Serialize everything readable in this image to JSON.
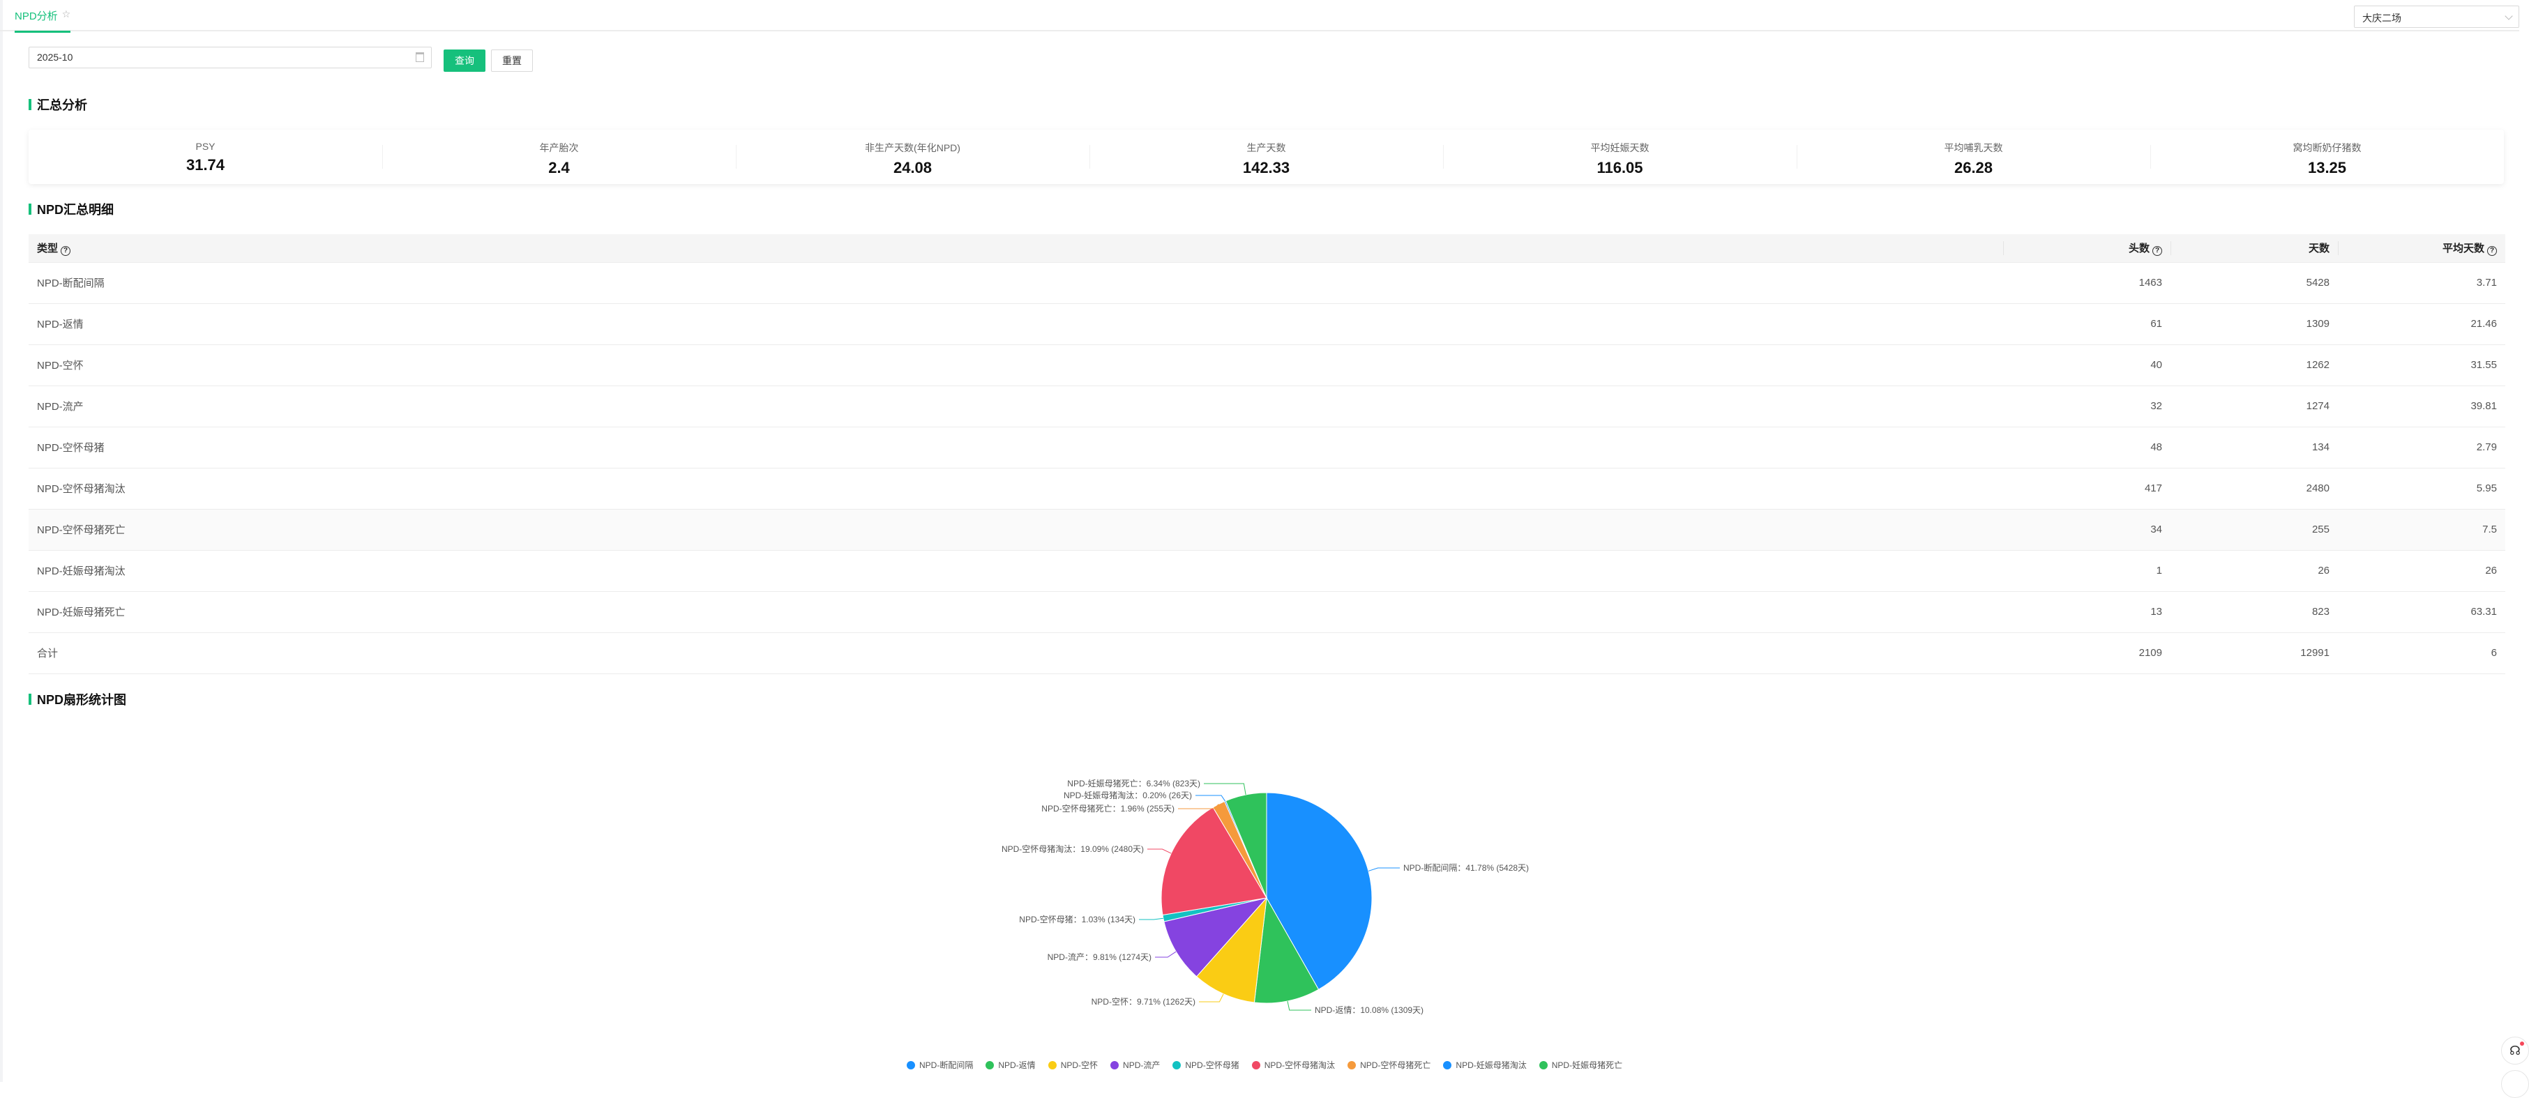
{
  "tab": {
    "label": "NPD分析"
  },
  "farm_select": {
    "value": "大庆二场"
  },
  "filter": {
    "date_value": "2025-10",
    "query_label": "查询",
    "reset_label": "重置"
  },
  "sections": {
    "summary": "汇总分析",
    "detail": "NPD汇总明细",
    "chart": "NPD扇形统计图"
  },
  "metrics": [
    {
      "label": "PSY",
      "value": "31.74"
    },
    {
      "label": "年产胎次",
      "value": "2.4"
    },
    {
      "label": "非生产天数(年化NPD)",
      "value": "24.08"
    },
    {
      "label": "生产天数",
      "value": "142.33"
    },
    {
      "label": "平均妊娠天数",
      "value": "116.05"
    },
    {
      "label": "平均哺乳天数",
      "value": "26.28"
    },
    {
      "label": "窝均断奶仔猪数",
      "value": "13.25"
    }
  ],
  "table": {
    "headers": [
      "类型",
      "头数",
      "天数",
      "平均天数"
    ],
    "rows": [
      [
        "NPD-断配间隔",
        "1463",
        "5428",
        "3.71"
      ],
      [
        "NPD-返情",
        "61",
        "1309",
        "21.46"
      ],
      [
        "NPD-空怀",
        "40",
        "1262",
        "31.55"
      ],
      [
        "NPD-流产",
        "32",
        "1274",
        "39.81"
      ],
      [
        "NPD-空怀母猪",
        "48",
        "134",
        "2.79"
      ],
      [
        "NPD-空怀母猪淘汰",
        "417",
        "2480",
        "5.95"
      ],
      [
        "NPD-空怀母猪死亡",
        "34",
        "255",
        "7.5"
      ],
      [
        "NPD-妊娠母猪淘汰",
        "1",
        "26",
        "26"
      ],
      [
        "NPD-妊娠母猪死亡",
        "13",
        "823",
        "63.31"
      ],
      [
        "合计",
        "2109",
        "12991",
        "6"
      ]
    ]
  },
  "chart_data": {
    "type": "pie",
    "legend_position": "bottom",
    "slices": [
      {
        "name": "NPD-断配间隔",
        "value": 5428,
        "percent": "41.78%",
        "label": "NPD-断配间隔：41.78% (5428天)",
        "color": "#1890ff"
      },
      {
        "name": "NPD-返情",
        "value": 1309,
        "percent": "10.08%",
        "label": "NPD-返情：10.08% (1309天)",
        "color": "#2fc25b"
      },
      {
        "name": "NPD-空怀",
        "value": 1262,
        "percent": "9.71%",
        "label": "NPD-空怀：9.71% (1262天)",
        "color": "#facc14"
      },
      {
        "name": "NPD-流产",
        "value": 1274,
        "percent": "9.81%",
        "label": "NPD-流产：9.81% (1274天)",
        "color": "#8543e0"
      },
      {
        "name": "NPD-空怀母猪",
        "value": 134,
        "percent": "1.03%",
        "label": "NPD-空怀母猪：1.03% (134天)",
        "color": "#13c2c2"
      },
      {
        "name": "NPD-空怀母猪淘汰",
        "value": 2480,
        "percent": "19.09%",
        "label": "NPD-空怀母猪淘汰：19.09% (2480天)",
        "color": "#f04864"
      },
      {
        "name": "NPD-空怀母猪死亡",
        "value": 255,
        "percent": "1.96%",
        "label": "NPD-空怀母猪死亡：1.96% (255天)",
        "color": "#f59a3c"
      },
      {
        "name": "NPD-妊娠母猪淘汰",
        "value": 26,
        "percent": "0.20%",
        "label": "NPD-妊娠母猪淘汰：0.20% (26天)",
        "color": "#1890ff"
      },
      {
        "name": "NPD-妊娠母猪死亡",
        "value": 823,
        "percent": "6.34%",
        "label": "NPD-妊娠母猪死亡：6.34% (823天)",
        "color": "#2fc25b"
      }
    ]
  },
  "icons": {
    "favorite": "star-icon",
    "calendar": "calendar-icon",
    "help": "help-circle-icon",
    "support": "headset-icon"
  },
  "colors": {
    "accent": "#16c07c"
  }
}
